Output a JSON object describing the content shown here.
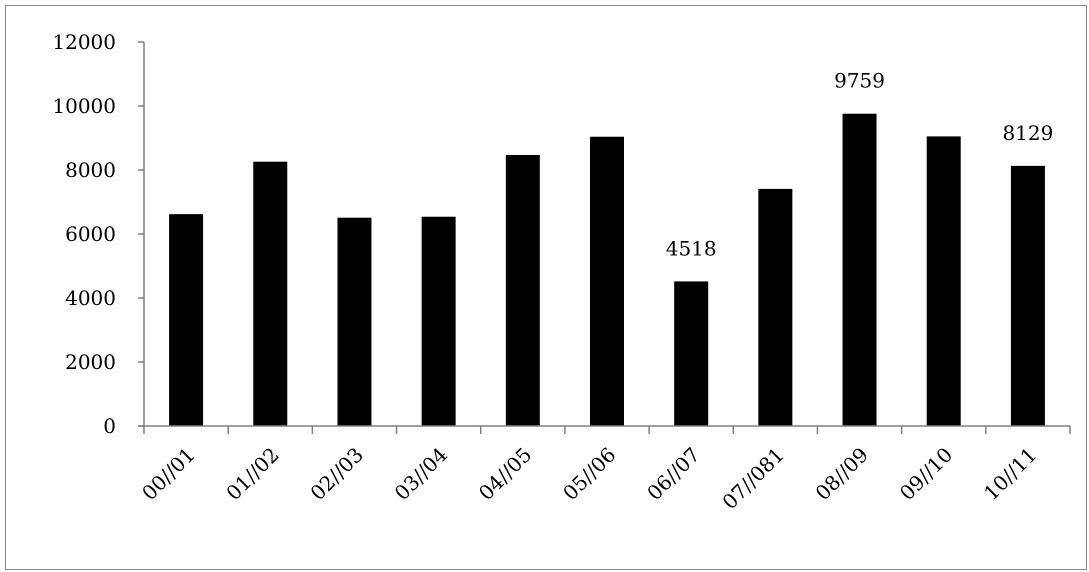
{
  "chart_data": {
    "type": "bar",
    "title": "",
    "xlabel": "",
    "ylabel": "",
    "categories": [
      "00//01",
      "01//02",
      "02//03",
      "03//04",
      "04//05",
      "05//06",
      "06//07",
      "07//081",
      "08//09",
      "09//10",
      "10//11"
    ],
    "values": [
      6620,
      8260,
      6510,
      6540,
      8470,
      9040,
      4518,
      7410,
      9759,
      9050,
      8129
    ],
    "data_labels": [
      {
        "category": "06//07",
        "text": "4518"
      },
      {
        "category": "08//09",
        "text": "9759"
      },
      {
        "category": "10//11",
        "text": "8129"
      }
    ],
    "y_ticks": [
      "0",
      "2000",
      "4000",
      "6000",
      "8000",
      "10000",
      "12000"
    ],
    "ylim": [
      0,
      12000
    ],
    "grid": false,
    "legend": "none",
    "bar_color": "#000000",
    "axis_color": "#808080",
    "border_color": "#8a8a8a"
  }
}
